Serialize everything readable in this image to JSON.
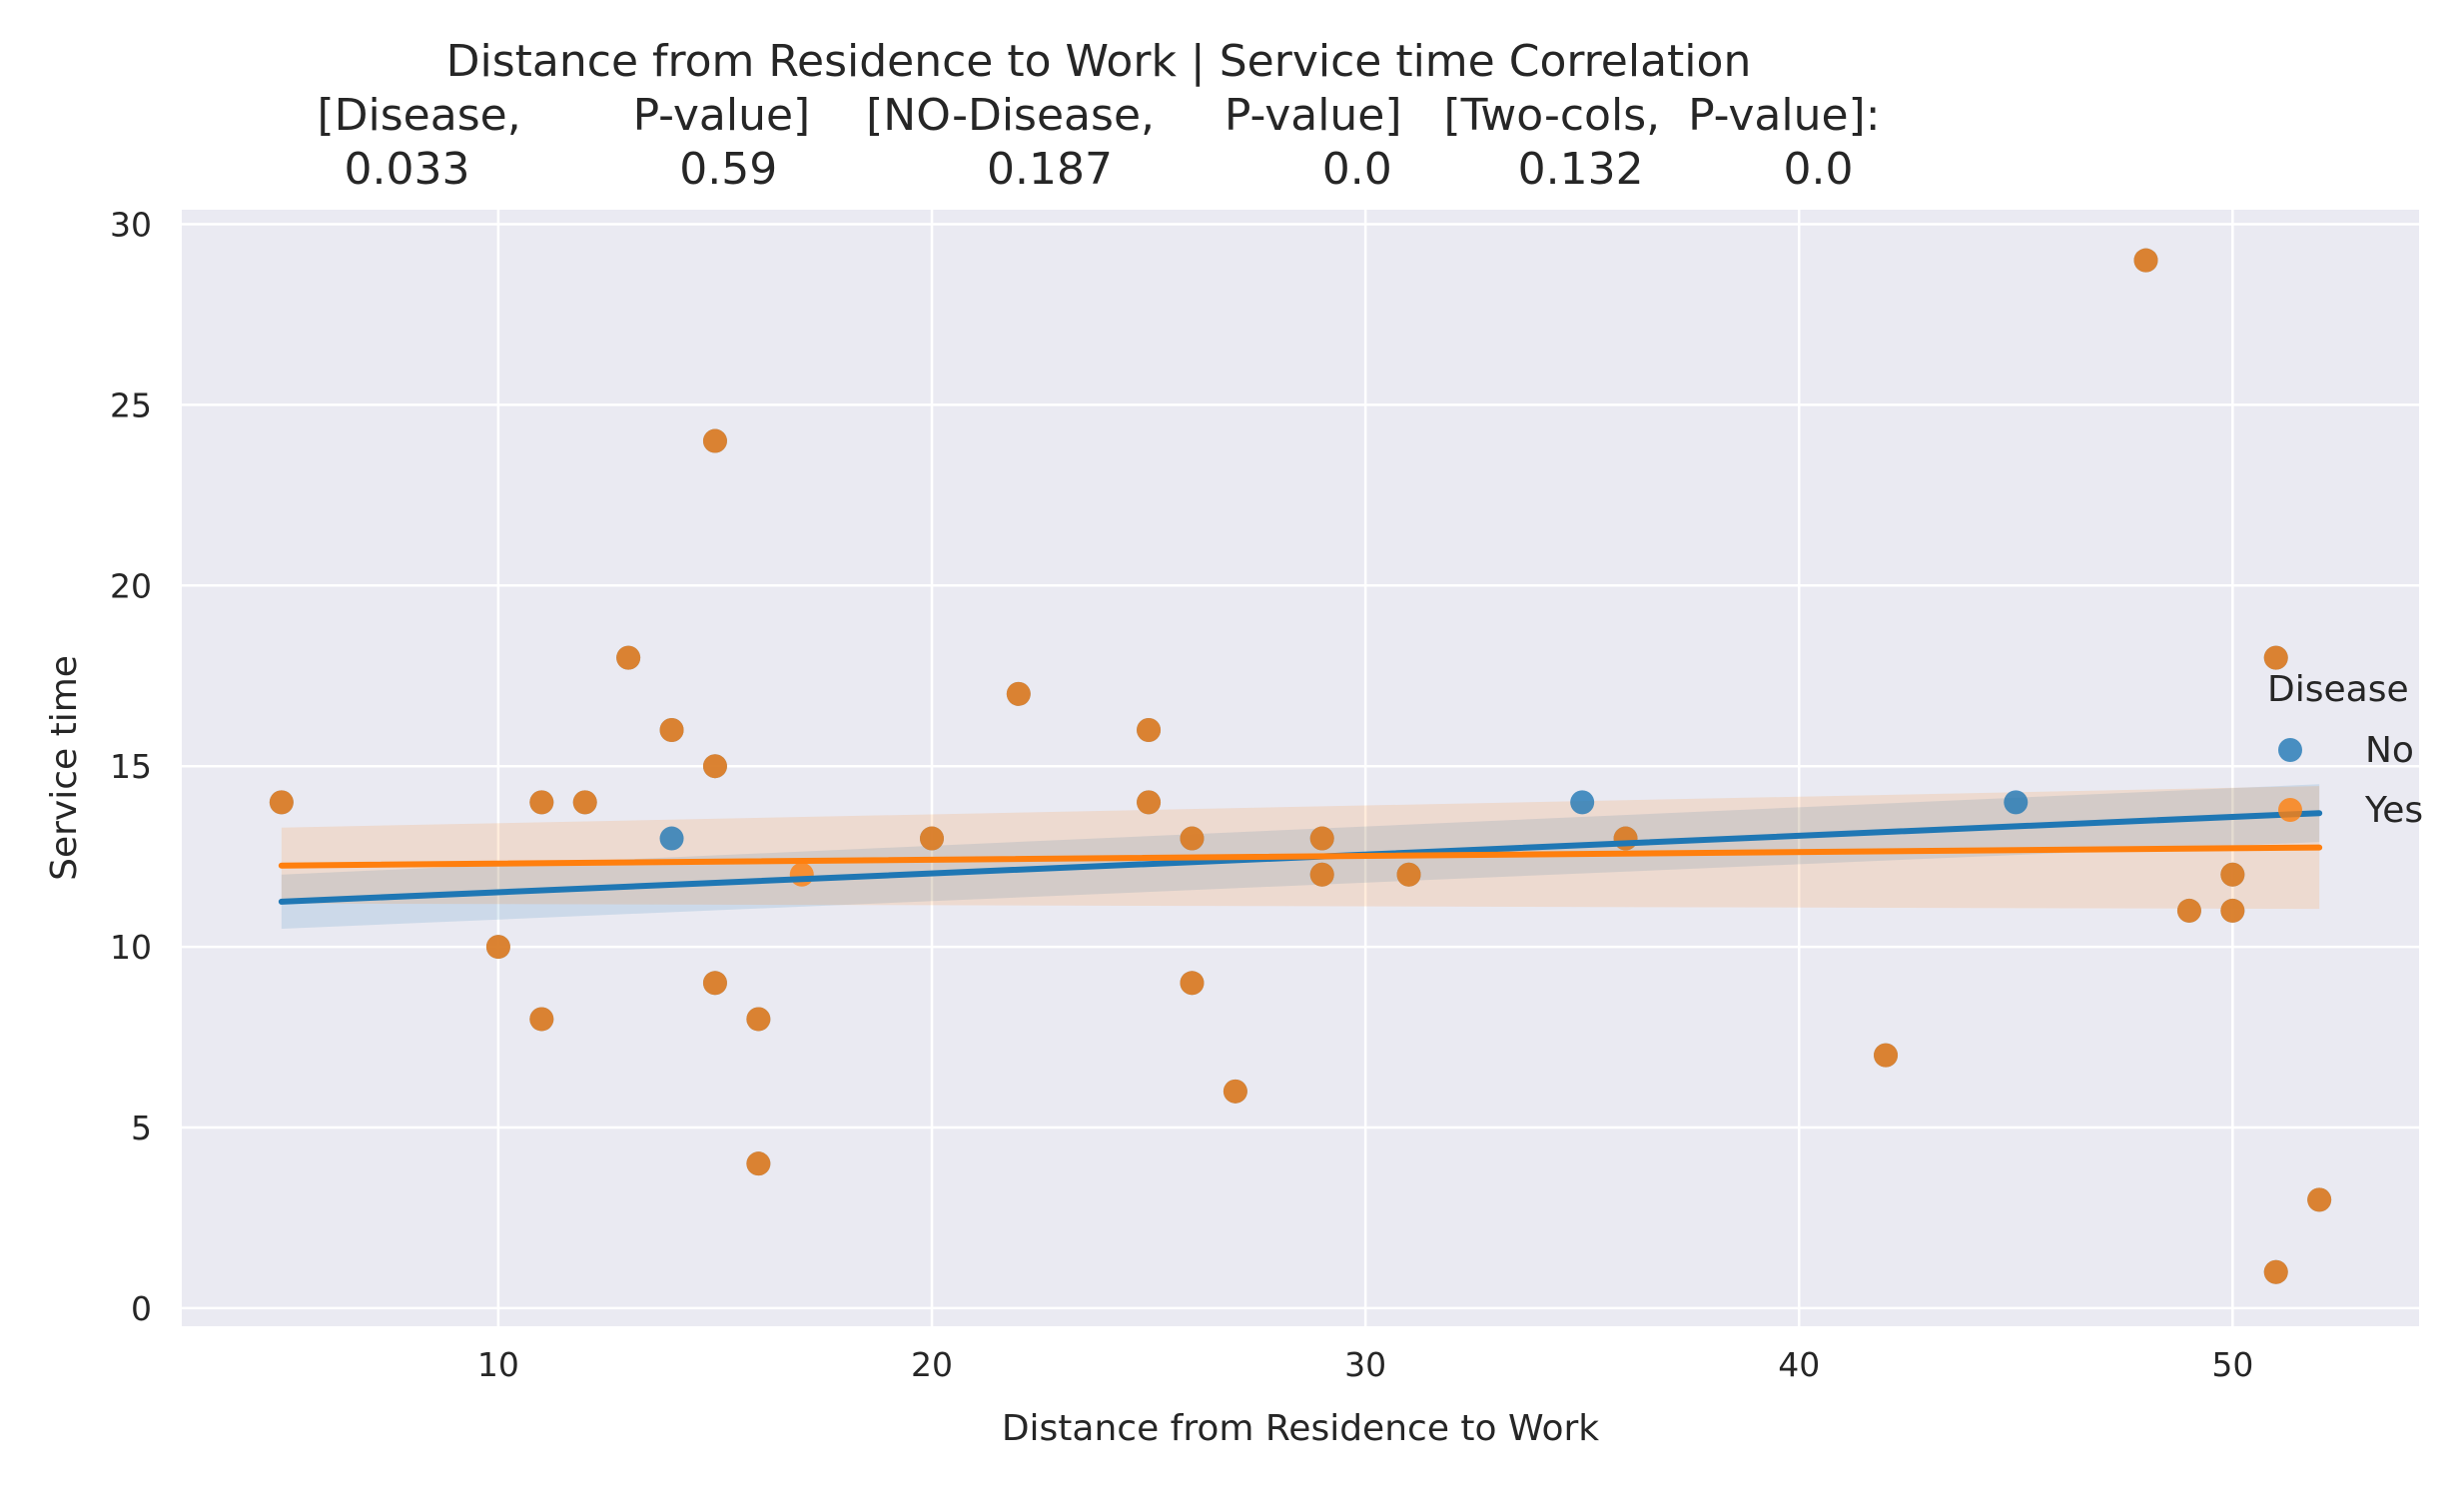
{
  "chart_data": {
    "type": "scatter",
    "title_lines": [
      "Distance from Residence to Work | Service time    Correlation",
      "[Disease,        P-value]    [NO-Disease,     P-value]   [Two-cols,  P-value]:",
      "0.033               0.59               0.187               0.0         0.132          0.0"
    ],
    "xlabel": "Distance from Residence to Work",
    "ylabel": "Service time",
    "xlim": [
      2.7,
      54.3
    ],
    "ylim": [
      -0.5,
      30.4
    ],
    "xticks": [
      10,
      20,
      30,
      40,
      50
    ],
    "yticks": [
      0,
      5,
      10,
      15,
      20,
      25,
      30
    ],
    "grid": true,
    "legend": {
      "title": "Disease",
      "placement": "right",
      "entries": [
        {
          "label": "No",
          "color": "#1f77b4"
        },
        {
          "label": "Yes",
          "color": "#ff7f0e"
        }
      ]
    },
    "series": [
      {
        "name": "No",
        "color": "#1f77b4",
        "points": [
          [
            5,
            14
          ],
          [
            10,
            10
          ],
          [
            11,
            14
          ],
          [
            11,
            8
          ],
          [
            12,
            14
          ],
          [
            13,
            18
          ],
          [
            14,
            16
          ],
          [
            14,
            13
          ],
          [
            15,
            24
          ],
          [
            15,
            15
          ],
          [
            15,
            9
          ],
          [
            16,
            8
          ],
          [
            16,
            4
          ],
          [
            20,
            13
          ],
          [
            22,
            17
          ],
          [
            25,
            16
          ],
          [
            25,
            14
          ],
          [
            26,
            13
          ],
          [
            26,
            9
          ],
          [
            27,
            6
          ],
          [
            29,
            13
          ],
          [
            29,
            12
          ],
          [
            31,
            12
          ],
          [
            35,
            14
          ],
          [
            36,
            13
          ],
          [
            42,
            7
          ],
          [
            45,
            14
          ],
          [
            48,
            29
          ],
          [
            49,
            11
          ],
          [
            50,
            12
          ],
          [
            50,
            11
          ],
          [
            51,
            18
          ],
          [
            51,
            1
          ],
          [
            52,
            3
          ]
        ],
        "fit": {
          "x": [
            5,
            52
          ],
          "y": [
            11.25,
            13.7
          ],
          "ci_low": [
            10.5,
            12.9
          ],
          "ci_high": [
            12.0,
            14.5
          ]
        }
      },
      {
        "name": "Yes",
        "color": "#ff7f0e",
        "points": [
          [
            5,
            14
          ],
          [
            10,
            10
          ],
          [
            11,
            14
          ],
          [
            11,
            8
          ],
          [
            12,
            14
          ],
          [
            13,
            18
          ],
          [
            14,
            16
          ],
          [
            15,
            24
          ],
          [
            15,
            15
          ],
          [
            15,
            9
          ],
          [
            16,
            8
          ],
          [
            16,
            4
          ],
          [
            17,
            12
          ],
          [
            20,
            13
          ],
          [
            22,
            17
          ],
          [
            25,
            16
          ],
          [
            25,
            14
          ],
          [
            26,
            13
          ],
          [
            26,
            9
          ],
          [
            27,
            6
          ],
          [
            29,
            13
          ],
          [
            29,
            12
          ],
          [
            31,
            12
          ],
          [
            36,
            13
          ],
          [
            42,
            7
          ],
          [
            48,
            29
          ],
          [
            49,
            11
          ],
          [
            50,
            12
          ],
          [
            50,
            11
          ],
          [
            51,
            18
          ],
          [
            51,
            1
          ],
          [
            52,
            3
          ]
        ],
        "fit": {
          "x": [
            5,
            52
          ],
          "y": [
            12.25,
            12.75
          ],
          "ci_low": [
            11.2,
            11.05
          ],
          "ci_high": [
            13.3,
            14.45
          ]
        }
      }
    ]
  }
}
